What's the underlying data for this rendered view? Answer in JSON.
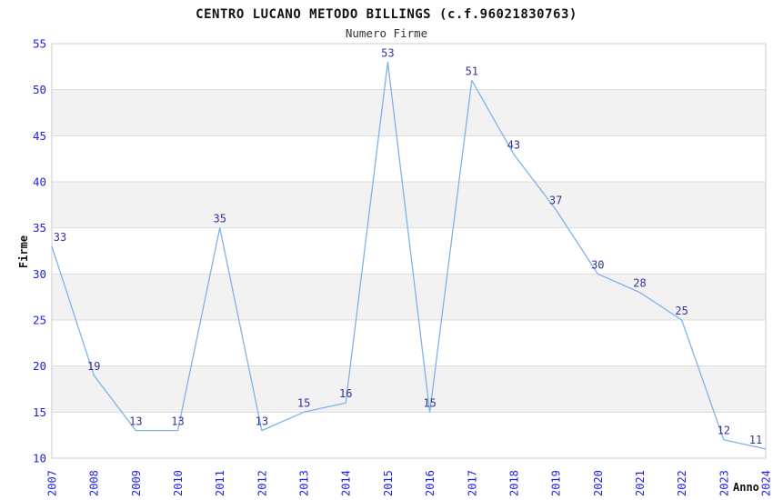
{
  "header": {
    "title": "CENTRO LUCANO METODO BILLINGS (c.f.96021830763)",
    "subtitle": "Numero Firme"
  },
  "chart_data": {
    "type": "line",
    "title": "CENTRO LUCANO METODO BILLINGS (c.f.96021830763)",
    "subtitle": "Numero Firme",
    "xlabel": "Anno",
    "ylabel": "Firme",
    "categories": [
      "2007",
      "2008",
      "2009",
      "2010",
      "2011",
      "2012",
      "2013",
      "2014",
      "2015",
      "2016",
      "2017",
      "2018",
      "2019",
      "2020",
      "2021",
      "2022",
      "2023",
      "2024"
    ],
    "series": [
      {
        "name": "Numero Firme",
        "values": [
          33,
          19,
          13,
          13,
          35,
          13,
          15,
          16,
          53,
          15,
          51,
          43,
          37,
          30,
          28,
          25,
          12,
          11
        ]
      }
    ],
    "ylim": [
      10,
      55
    ],
    "ytick_step": 5,
    "yticks": [
      10,
      15,
      20,
      25,
      30,
      35,
      40,
      45,
      50,
      55
    ],
    "grid": "on",
    "gray_bands": [
      [
        15,
        20
      ],
      [
        25,
        30
      ],
      [
        35,
        40
      ],
      [
        45,
        50
      ]
    ],
    "data_labels": true,
    "legend_position": "none",
    "colors": {
      "line": "#7fb3e8",
      "data_label": "#333399",
      "tick_label": "#2222dd",
      "band_fill": "#f2f2f2",
      "grid_line": "#dcdcdc",
      "plot_border": "#cccccc",
      "background": "#ffffff"
    }
  }
}
